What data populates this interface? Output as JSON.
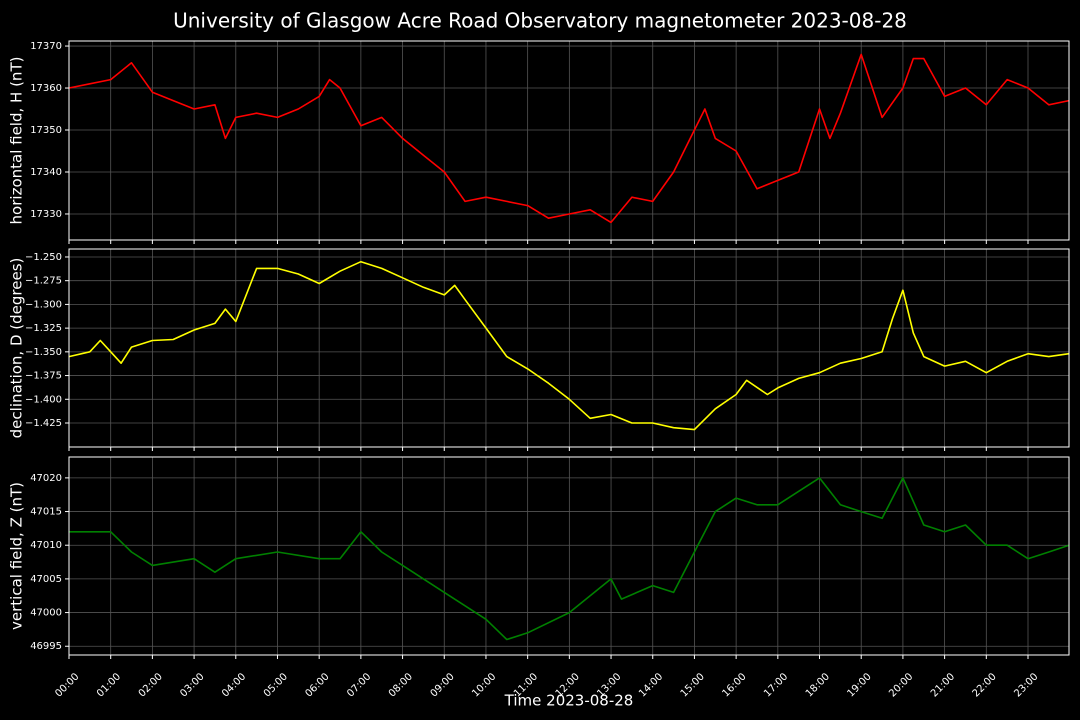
{
  "chart_data": [
    {
      "type": "line",
      "title": "University of Glasgow Acre Road Observatory magnetometer 2023-08-28",
      "ylabel": "horizontal field, H (nT)",
      "color": "#ff0000",
      "grid": true,
      "x": [
        "00:00",
        "00:30",
        "01:00",
        "01:30",
        "02:00",
        "02:30",
        "03:00",
        "03:30",
        "03:45",
        "04:00",
        "04:30",
        "05:00",
        "05:30",
        "06:00",
        "06:15",
        "06:30",
        "07:00",
        "07:30",
        "08:00",
        "08:30",
        "09:00",
        "09:30",
        "10:00",
        "10:30",
        "11:00",
        "11:30",
        "12:00",
        "12:30",
        "13:00",
        "13:30",
        "14:00",
        "14:30",
        "15:00",
        "15:15",
        "15:30",
        "16:00",
        "16:30",
        "17:00",
        "17:30",
        "18:00",
        "18:15",
        "18:30",
        "19:00",
        "19:30",
        "20:00",
        "20:15",
        "20:30",
        "21:00",
        "21:30",
        "22:00",
        "22:30",
        "23:00",
        "23:30",
        "23:59"
      ],
      "values": [
        17360,
        17361,
        17362,
        17366,
        17359,
        17357,
        17355,
        17356,
        17348,
        17353,
        17354,
        17353,
        17355,
        17358,
        17362,
        17360,
        17351,
        17353,
        17348,
        17344,
        17340,
        17333,
        17334,
        17333,
        17332,
        17329,
        17330,
        17331,
        17328,
        17334,
        17333,
        17340,
        17350,
        17355,
        17348,
        17345,
        17336,
        17338,
        17340,
        17355,
        17348,
        17354,
        17368,
        17353,
        17360,
        17367,
        17367,
        17358,
        17360,
        17356,
        17362,
        17360,
        17356,
        17357
      ],
      "xlim": [
        "00:00",
        "23:59"
      ],
      "xticks": [
        "00:00",
        "01:00",
        "02:00",
        "03:00",
        "04:00",
        "05:00",
        "06:00",
        "07:00",
        "08:00",
        "09:00",
        "10:00",
        "11:00",
        "12:00",
        "13:00",
        "14:00",
        "15:00",
        "16:00",
        "17:00",
        "18:00",
        "19:00",
        "20:00",
        "21:00",
        "22:00",
        "23:00"
      ],
      "ylim": [
        17323.8,
        17371.2
      ],
      "yticks": [
        17330,
        17340,
        17350,
        17360,
        17370
      ]
    },
    {
      "type": "line",
      "ylabel": "declination, D (degrees)",
      "color": "#ffff00",
      "grid": true,
      "x": [
        "00:00",
        "00:30",
        "00:45",
        "01:00",
        "01:15",
        "01:30",
        "02:00",
        "02:30",
        "03:00",
        "03:30",
        "03:45",
        "04:00",
        "04:15",
        "04:30",
        "05:00",
        "05:30",
        "06:00",
        "06:30",
        "07:00",
        "07:30",
        "08:00",
        "08:30",
        "09:00",
        "09:15",
        "09:30",
        "10:00",
        "10:30",
        "11:00",
        "11:30",
        "12:00",
        "12:30",
        "13:00",
        "13:30",
        "14:00",
        "14:30",
        "15:00",
        "15:30",
        "16:00",
        "16:15",
        "16:45",
        "17:00",
        "17:30",
        "18:00",
        "18:30",
        "19:00",
        "19:30",
        "19:45",
        "20:00",
        "20:15",
        "20:30",
        "21:00",
        "21:30",
        "22:00",
        "22:30",
        "23:00",
        "23:30",
        "23:59"
      ],
      "values": [
        -1.355,
        -1.35,
        -1.338,
        -1.35,
        -1.362,
        -1.345,
        -1.338,
        -1.337,
        -1.327,
        -1.32,
        -1.305,
        -1.318,
        -1.29,
        -1.262,
        -1.262,
        -1.268,
        -1.278,
        -1.265,
        -1.255,
        -1.262,
        -1.272,
        -1.282,
        -1.29,
        -1.28,
        -1.295,
        -1.325,
        -1.355,
        -1.368,
        -1.383,
        -1.4,
        -1.42,
        -1.416,
        -1.425,
        -1.425,
        -1.43,
        -1.432,
        -1.41,
        -1.395,
        -1.38,
        -1.395,
        -1.388,
        -1.378,
        -1.372,
        -1.362,
        -1.357,
        -1.35,
        -1.315,
        -1.285,
        -1.33,
        -1.355,
        -1.365,
        -1.36,
        -1.372,
        -1.36,
        -1.352,
        -1.355,
        -1.352
      ],
      "xlim": [
        "00:00",
        "23:59"
      ],
      "xticks": [
        "00:00",
        "01:00",
        "02:00",
        "03:00",
        "04:00",
        "05:00",
        "06:00",
        "07:00",
        "08:00",
        "09:00",
        "10:00",
        "11:00",
        "12:00",
        "13:00",
        "14:00",
        "15:00",
        "16:00",
        "17:00",
        "18:00",
        "19:00",
        "20:00",
        "21:00",
        "22:00",
        "23:00"
      ],
      "ylim": [
        -1.4503,
        -1.2416
      ],
      "yticks": [
        {
          "value": -1.25,
          "label": "−1.250"
        },
        {
          "value": -1.275,
          "label": "−1.275"
        },
        {
          "value": -1.3,
          "label": "−1.300"
        },
        {
          "value": -1.325,
          "label": "−1.325"
        },
        {
          "value": -1.35,
          "label": "−1.350"
        },
        {
          "value": -1.375,
          "label": "−1.375"
        },
        {
          "value": -1.4,
          "label": "−1.400"
        },
        {
          "value": -1.425,
          "label": "−1.425"
        }
      ]
    },
    {
      "type": "line",
      "ylabel": "vertical field, Z (nT)",
      "xlabel": "Time 2023-08-28",
      "color": "#008000",
      "grid": true,
      "x": [
        "00:00",
        "01:00",
        "01:30",
        "02:00",
        "03:00",
        "03:30",
        "04:00",
        "05:00",
        "06:00",
        "06:30",
        "07:00",
        "07:30",
        "08:00",
        "09:00",
        "10:00",
        "10:30",
        "11:00",
        "12:00",
        "13:00",
        "13:15",
        "14:00",
        "14:30",
        "15:00",
        "15:30",
        "16:00",
        "16:30",
        "17:00",
        "17:30",
        "18:00",
        "18:30",
        "19:00",
        "19:30",
        "20:00",
        "20:30",
        "21:00",
        "21:30",
        "22:00",
        "22:30",
        "23:00",
        "23:30",
        "23:59"
      ],
      "values": [
        47012,
        47012,
        47009,
        47007,
        47008,
        47006,
        47008,
        47009,
        47008,
        47008,
        47012,
        47009,
        47007,
        47003,
        46999,
        46996,
        46997,
        47000,
        47005,
        47002,
        47004,
        47003,
        47009,
        47015,
        47017,
        47016,
        47016,
        47018,
        47020,
        47016,
        47015,
        47014,
        47020,
        47013,
        47012,
        47013,
        47010,
        47010,
        47008,
        47009,
        47010
      ],
      "xlim": [
        "00:00",
        "23:59"
      ],
      "xticks": [
        "00:00",
        "01:00",
        "02:00",
        "03:00",
        "04:00",
        "05:00",
        "06:00",
        "07:00",
        "08:00",
        "09:00",
        "10:00",
        "11:00",
        "12:00",
        "13:00",
        "14:00",
        "15:00",
        "16:00",
        "17:00",
        "18:00",
        "19:00",
        "20:00",
        "21:00",
        "22:00",
        "23:00"
      ],
      "ylim": [
        46993.7,
        47023.1
      ],
      "yticks": [
        46995,
        47000,
        47005,
        47010,
        47015,
        47020
      ]
    }
  ]
}
